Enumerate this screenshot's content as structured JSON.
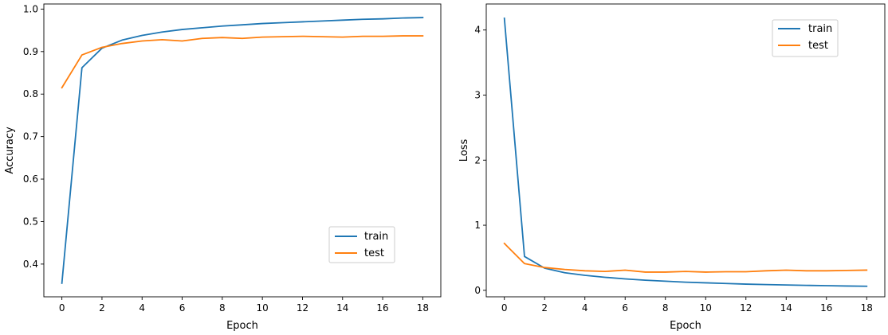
{
  "chart_data": [
    {
      "type": "line",
      "xlabel": "Epoch",
      "ylabel": "Accuracy",
      "xlim": [
        -0.9,
        18.9
      ],
      "ylim": [
        0.323,
        1.012
      ],
      "xticks": [
        0,
        2,
        4,
        6,
        8,
        10,
        12,
        14,
        16,
        18
      ],
      "yticks": [
        0.4,
        0.5,
        0.6,
        0.7,
        0.8,
        0.9,
        1.0
      ],
      "ytick_labels": [
        "0.4",
        "0.5",
        "0.6",
        "0.7",
        "0.8",
        "0.9",
        "1.0"
      ],
      "legend_position": "lower-right",
      "grid": false,
      "x": [
        0,
        1,
        2,
        3,
        4,
        5,
        6,
        7,
        8,
        9,
        10,
        11,
        12,
        13,
        14,
        15,
        16,
        17,
        18
      ],
      "series": [
        {
          "name": "train",
          "color": "#1f77b4",
          "values": [
            0.355,
            0.862,
            0.908,
            0.927,
            0.938,
            0.946,
            0.952,
            0.956,
            0.96,
            0.963,
            0.966,
            0.968,
            0.97,
            0.972,
            0.974,
            0.976,
            0.977,
            0.979,
            0.98
          ]
        },
        {
          "name": "test",
          "color": "#ff7f0e",
          "values": [
            0.815,
            0.892,
            0.91,
            0.919,
            0.925,
            0.928,
            0.925,
            0.931,
            0.933,
            0.931,
            0.934,
            0.935,
            0.936,
            0.935,
            0.934,
            0.936,
            0.936,
            0.937,
            0.937
          ]
        }
      ]
    },
    {
      "type": "line",
      "xlabel": "Epoch",
      "ylabel": "Loss",
      "xlim": [
        -0.9,
        18.9
      ],
      "ylim": [
        -0.1,
        4.4
      ],
      "xticks": [
        0,
        2,
        4,
        6,
        8,
        10,
        12,
        14,
        16,
        18
      ],
      "yticks": [
        0,
        1,
        2,
        3,
        4
      ],
      "ytick_labels": [
        "0",
        "1",
        "2",
        "3",
        "4"
      ],
      "legend_position": "upper-right",
      "grid": false,
      "x": [
        0,
        1,
        2,
        3,
        4,
        5,
        6,
        7,
        8,
        9,
        10,
        11,
        12,
        13,
        14,
        15,
        16,
        17,
        18
      ],
      "series": [
        {
          "name": "train",
          "color": "#1f77b4",
          "values": [
            4.18,
            0.52,
            0.34,
            0.27,
            0.23,
            0.2,
            0.175,
            0.155,
            0.14,
            0.125,
            0.115,
            0.105,
            0.095,
            0.088,
            0.082,
            0.076,
            0.071,
            0.066,
            0.062
          ]
        },
        {
          "name": "test",
          "color": "#ff7f0e",
          "values": [
            0.72,
            0.41,
            0.35,
            0.32,
            0.3,
            0.29,
            0.31,
            0.28,
            0.28,
            0.29,
            0.28,
            0.285,
            0.285,
            0.3,
            0.31,
            0.3,
            0.3,
            0.305,
            0.31
          ]
        }
      ]
    }
  ]
}
